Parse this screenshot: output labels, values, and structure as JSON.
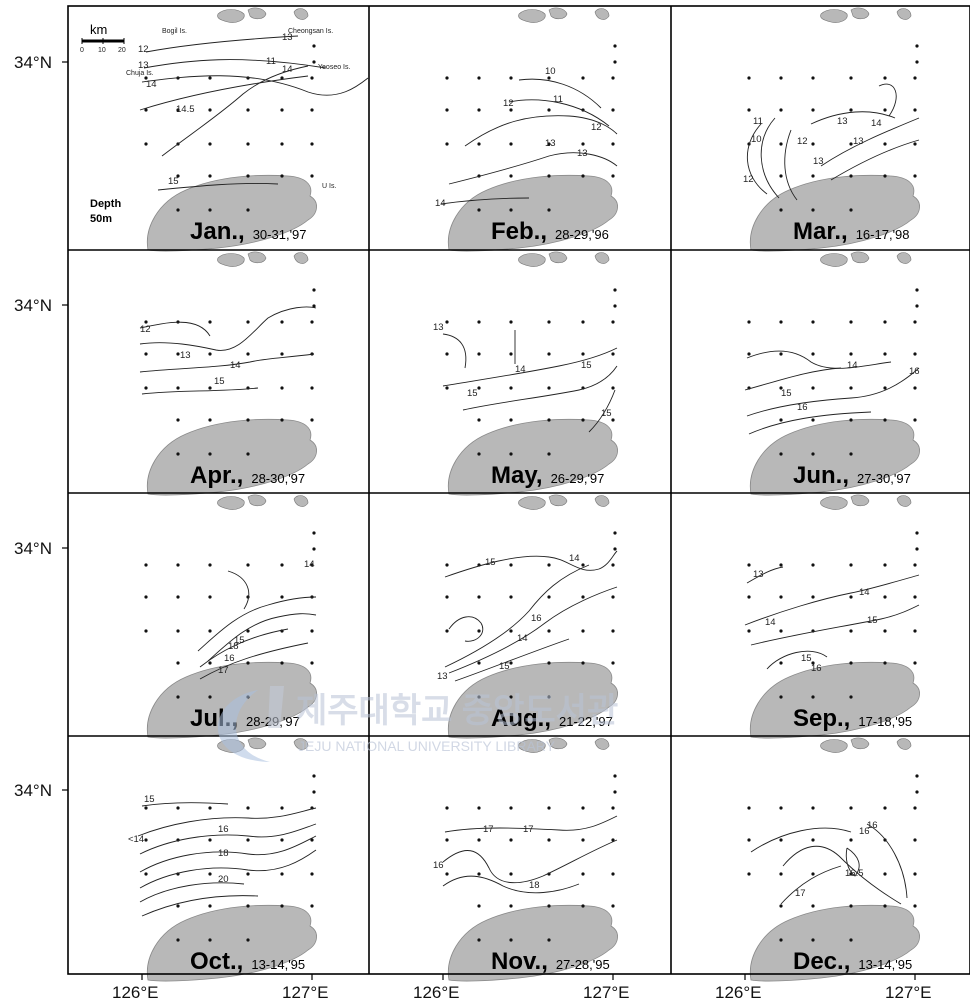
{
  "map": {
    "lat_label": "34°N",
    "lon_labels": [
      "126°E",
      "127°E"
    ],
    "scale": {
      "unit": "km",
      "ticks": [
        "0",
        "10",
        "20"
      ]
    },
    "depth_label": [
      "Depth",
      "50m"
    ],
    "islands": [
      "Bogil Is.",
      "Cheongsan Is.",
      "Yeoseo Is.",
      "Chuja Is.",
      "U Is."
    ],
    "land_color": "#b8b8b8",
    "line_color": "#222222"
  },
  "panels": [
    {
      "month": "Jan.,",
      "dates": "30-31,'97",
      "labels": [
        "12",
        "13",
        "14",
        "14.5",
        "15",
        "13",
        "14",
        "11"
      ]
    },
    {
      "month": "Feb.,",
      "dates": "28-29,'96",
      "labels": [
        "10",
        "11",
        "12",
        "13",
        "13",
        "14",
        "12"
      ]
    },
    {
      "month": "Mar.,",
      "dates": "16-17,'98",
      "labels": [
        "11",
        "10",
        "12",
        "13",
        "13",
        "14",
        "13",
        "12"
      ]
    },
    {
      "month": "Apr.,",
      "dates": "28-30,'97",
      "labels": [
        "12",
        "13",
        "14",
        "15"
      ]
    },
    {
      "month": "May,",
      "dates": "26-29,'97",
      "labels": [
        "13",
        "14",
        "15",
        "15",
        "15"
      ]
    },
    {
      "month": "Jun.,",
      "dates": "27-30,'97",
      "labels": [
        "14",
        "15",
        "16",
        "16"
      ]
    },
    {
      "month": "Jul.,",
      "dates": "28-29,'97",
      "labels": [
        "14",
        "15",
        "16",
        "17",
        "18"
      ]
    },
    {
      "month": "Aug.,",
      "dates": "21-22,'97",
      "labels": [
        "15",
        "14",
        "14",
        "16",
        "15",
        "13"
      ]
    },
    {
      "month": "Sep.,",
      "dates": "17-18,'95",
      "labels": [
        "13",
        "14",
        "14",
        "15",
        "15",
        "16"
      ]
    },
    {
      "month": "Oct.,",
      "dates": "13-14,'95",
      "labels": [
        "15",
        "<14",
        "16",
        "18",
        "20"
      ]
    },
    {
      "month": "Nov.,",
      "dates": "27-28,'95",
      "labels": [
        "17",
        "16",
        "17",
        "18"
      ]
    },
    {
      "month": "Dec.,",
      "dates": "13-14,'95",
      "labels": [
        "16",
        "16.5",
        "17",
        "16"
      ]
    }
  ],
  "watermark": {
    "korean": "제주대학교 중앙도서관",
    "english": "JEJU NATIONAL UNIVERSITY LIBRARY"
  }
}
